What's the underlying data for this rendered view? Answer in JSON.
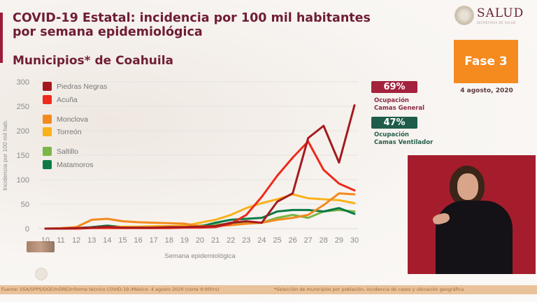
{
  "header": {
    "title": "COVID-19 Estatal: incidencia por 100 mil habitantes por semana epidemiológica",
    "subtitle": "Municipios* de Coahuila"
  },
  "logo": {
    "name": "SALUD",
    "sub": "SECRETARÍA DE SALUD"
  },
  "phase": {
    "label": "Fase 3",
    "date": "4 agosto, 2020",
    "color": "#f58a1f"
  },
  "occupancy": {
    "general": {
      "value": "69%",
      "label_line1": "Ocupación",
      "label_line2": "Camas General",
      "color": "#a3223d"
    },
    "ventilator": {
      "value": "47%",
      "label_line1": "Ocupación",
      "label_line2": "Camas Ventilador",
      "color": "#1f5c4a"
    }
  },
  "footer": {
    "source": "Fuente: SSA/SPPS/DGE/InDRE/Informe técnico COVID-19 /México- 4 agosto 2020 (corte 9:00hrs)",
    "note": "*Selección de municipios por población, incidencia de casos y ubicación geográfica"
  },
  "chart_data": {
    "type": "line",
    "title": "COVID-19 Estatal: incidencia por 100 mil habitantes por semana epidemiológica",
    "subtitle": "Municipios* de Coahuila",
    "xlabel": "Semana epidemiológica",
    "ylabel": "Incidencia por 100 mil hab.",
    "ylim": [
      0,
      300
    ],
    "yticks": [
      0,
      50,
      100,
      150,
      200,
      250,
      300
    ],
    "grid": true,
    "legend_position": "top-left",
    "x": [
      10,
      11,
      12,
      13,
      14,
      15,
      16,
      17,
      18,
      19,
      20,
      21,
      22,
      23,
      24,
      25,
      26,
      27,
      28,
      29,
      30
    ],
    "series": [
      {
        "name": "Piedras Negras",
        "color": "#a31a1e",
        "values": [
          0,
          0,
          1,
          2,
          4,
          2,
          2,
          2,
          3,
          3,
          4,
          5,
          12,
          15,
          12,
          55,
          72,
          185,
          210,
          135,
          252
        ]
      },
      {
        "name": "Acuña",
        "color": "#ee2a1c",
        "values": [
          0,
          0,
          0,
          1,
          1,
          1,
          1,
          1,
          1,
          2,
          2,
          3,
          10,
          28,
          65,
          108,
          145,
          178,
          120,
          92,
          78
        ]
      },
      {
        "name": "Monclova",
        "color": "#f28a1e",
        "values": [
          0,
          1,
          3,
          18,
          20,
          15,
          13,
          12,
          11,
          10,
          5,
          5,
          7,
          10,
          12,
          18,
          22,
          28,
          48,
          72,
          70
        ]
      },
      {
        "name": "Torreón",
        "color": "#f9b21c",
        "values": [
          0,
          0,
          1,
          2,
          3,
          4,
          4,
          5,
          5,
          6,
          12,
          18,
          28,
          42,
          52,
          60,
          70,
          62,
          60,
          58,
          52
        ]
      },
      {
        "name": "Saltillo",
        "color": "#7ab648",
        "values": [
          0,
          0,
          1,
          2,
          3,
          2,
          2,
          3,
          4,
          5,
          6,
          8,
          10,
          12,
          12,
          22,
          28,
          22,
          35,
          38,
          35
        ]
      },
      {
        "name": "Matamoros",
        "color": "#0b7a45",
        "values": [
          0,
          0,
          1,
          3,
          6,
          3,
          2,
          2,
          3,
          3,
          4,
          12,
          18,
          20,
          22,
          35,
          38,
          38,
          35,
          42,
          30
        ]
      }
    ]
  }
}
